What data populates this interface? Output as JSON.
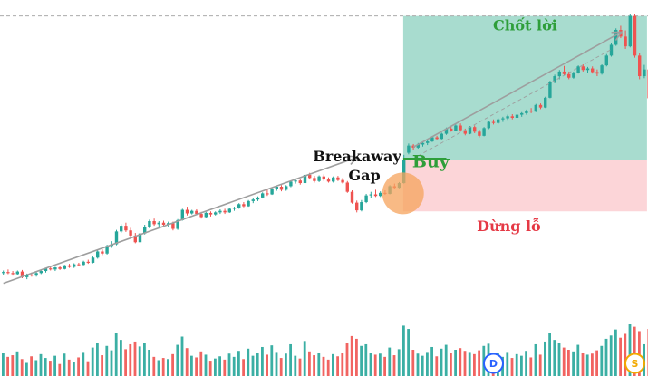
{
  "colors": {
    "up": "#26a69a",
    "down": "#ef5350",
    "arrow": "#9e9e9e",
    "take_profit_zone": "#a8dccf",
    "stop_loss_zone": "#fcd5d8",
    "gap_circle": "#f5a35c",
    "buy_line": "#2e9e3a",
    "buy_text": "#2e9e3a",
    "take_profit_text": "#2e9e3a",
    "stop_loss_text": "#e53945",
    "breakaway_text": "#111111",
    "marker_D": "#2962ff",
    "marker_S": "#f2a900"
  },
  "annotations": {
    "breakaway_line1": "Breakaway",
    "breakaway_line2": "Gap",
    "buy": "Buy",
    "take_profit": "Chốt lời",
    "stop_loss": "Dừng lỗ"
  },
  "markers": [
    {
      "label": "D",
      "icon": "dividend-marker-icon",
      "index": 104
    },
    {
      "label": "S",
      "icon": "split-marker-icon",
      "index": 134
    }
  ],
  "chart_data": {
    "type": "candlestick",
    "title": "",
    "xlabel": "",
    "ylabel": "",
    "grid": false,
    "candles": [
      [
        44.0,
        44.5,
        43.6,
        44.2,
        42
      ],
      [
        44.2,
        44.7,
        43.8,
        44.0,
        35
      ],
      [
        44.0,
        44.4,
        43.5,
        43.8,
        38
      ],
      [
        43.8,
        44.5,
        43.6,
        44.3,
        45
      ],
      [
        44.3,
        44.6,
        43.0,
        43.2,
        31
      ],
      [
        43.2,
        43.9,
        42.8,
        43.7,
        24
      ],
      [
        43.7,
        44.1,
        43.3,
        43.5,
        36
      ],
      [
        43.5,
        44.2,
        43.3,
        44.0,
        29
      ],
      [
        44.0,
        44.6,
        43.8,
        44.4,
        40
      ],
      [
        44.4,
        45.0,
        44.1,
        44.9,
        33
      ],
      [
        44.9,
        45.3,
        44.5,
        44.7,
        28
      ],
      [
        44.7,
        45.2,
        44.4,
        45.1,
        37
      ],
      [
        45.1,
        45.4,
        44.6,
        44.8,
        22
      ],
      [
        44.8,
        45.6,
        44.7,
        45.5,
        41
      ],
      [
        45.5,
        45.8,
        45.0,
        45.2,
        30
      ],
      [
        45.2,
        45.9,
        45.0,
        45.7,
        26
      ],
      [
        45.7,
        46.0,
        45.3,
        45.6,
        34
      ],
      [
        45.6,
        46.4,
        45.5,
        46.2,
        44
      ],
      [
        46.2,
        46.6,
        45.8,
        46.0,
        27
      ],
      [
        46.0,
        47.2,
        45.9,
        47.0,
        52
      ],
      [
        47.0,
        48.4,
        46.8,
        48.2,
        61
      ],
      [
        48.2,
        48.6,
        47.5,
        47.8,
        38
      ],
      [
        47.8,
        49.5,
        47.6,
        49.3,
        55
      ],
      [
        49.3,
        50.2,
        48.9,
        49.6,
        47
      ],
      [
        49.6,
        52.4,
        49.4,
        52.1,
        78
      ],
      [
        52.1,
        53.5,
        51.8,
        53.2,
        66
      ],
      [
        53.2,
        53.8,
        52.0,
        52.3,
        49
      ],
      [
        52.3,
        52.8,
        50.9,
        51.3,
        58
      ],
      [
        51.3,
        51.8,
        49.8,
        50.0,
        63
      ],
      [
        50.0,
        51.9,
        49.6,
        51.7,
        54
      ],
      [
        51.7,
        53.4,
        51.5,
        53.0,
        60
      ],
      [
        53.0,
        54.4,
        52.7,
        54.1,
        48
      ],
      [
        54.1,
        54.6,
        53.2,
        53.5,
        35
      ],
      [
        53.5,
        54.1,
        53.0,
        53.8,
        29
      ],
      [
        53.8,
        54.2,
        53.1,
        53.4,
        33
      ],
      [
        53.4,
        54.0,
        52.9,
        53.7,
        31
      ],
      [
        53.7,
        54.0,
        52.3,
        52.6,
        40
      ],
      [
        52.6,
        54.5,
        52.4,
        54.3,
        57
      ],
      [
        54.3,
        56.5,
        54.2,
        56.3,
        72
      ],
      [
        56.3,
        56.9,
        55.2,
        55.6,
        51
      ],
      [
        55.6,
        56.3,
        55.4,
        56.1,
        37
      ],
      [
        56.1,
        56.4,
        55.3,
        55.5,
        34
      ],
      [
        55.5,
        55.9,
        54.6,
        54.9,
        45
      ],
      [
        54.9,
        55.9,
        54.7,
        55.7,
        39
      ],
      [
        55.7,
        56.0,
        55.0,
        55.4,
        28
      ],
      [
        55.4,
        56.0,
        55.2,
        55.8,
        32
      ],
      [
        55.8,
        56.4,
        55.5,
        56.1,
        36
      ],
      [
        56.1,
        56.5,
        55.5,
        55.8,
        30
      ],
      [
        55.8,
        56.7,
        55.7,
        56.5,
        41
      ],
      [
        56.5,
        56.9,
        56.1,
        56.7,
        35
      ],
      [
        56.7,
        57.6,
        56.5,
        57.4,
        46
      ],
      [
        57.4,
        57.8,
        56.8,
        57.0,
        31
      ],
      [
        57.0,
        58.2,
        56.9,
        58.0,
        50
      ],
      [
        58.0,
        58.6,
        57.6,
        58.3,
        37
      ],
      [
        58.3,
        58.9,
        58.0,
        58.7,
        42
      ],
      [
        58.7,
        59.7,
        58.5,
        59.5,
        53
      ],
      [
        59.5,
        60.2,
        59.0,
        59.3,
        39
      ],
      [
        59.3,
        60.6,
        59.2,
        60.4,
        56
      ],
      [
        60.4,
        61.0,
        60.0,
        60.8,
        44
      ],
      [
        60.8,
        61.1,
        59.9,
        60.2,
        33
      ],
      [
        60.2,
        61.1,
        60.0,
        60.9,
        41
      ],
      [
        60.9,
        62.0,
        60.7,
        61.8,
        58
      ],
      [
        61.8,
        62.3,
        61.4,
        62.0,
        37
      ],
      [
        62.0,
        62.4,
        61.2,
        61.5,
        32
      ],
      [
        61.5,
        63.3,
        61.4,
        63.1,
        64
      ],
      [
        63.1,
        63.5,
        62.2,
        62.5,
        45
      ],
      [
        62.5,
        62.9,
        61.6,
        61.9,
        38
      ],
      [
        61.9,
        63.0,
        61.7,
        62.8,
        43
      ],
      [
        62.8,
        63.2,
        61.9,
        62.2,
        35
      ],
      [
        62.2,
        62.6,
        61.6,
        61.8,
        30
      ],
      [
        61.8,
        62.8,
        61.6,
        62.6,
        40
      ],
      [
        62.6,
        62.9,
        61.9,
        62.1,
        36
      ],
      [
        62.1,
        62.5,
        61.4,
        61.6,
        42
      ],
      [
        61.6,
        61.9,
        59.6,
        59.8,
        61
      ],
      [
        59.8,
        60.1,
        57.5,
        57.7,
        73
      ],
      [
        57.7,
        58.1,
        55.8,
        56.2,
        68
      ],
      [
        56.2,
        58.2,
        56.0,
        57.8,
        55
      ],
      [
        57.8,
        59.4,
        57.6,
        59.1,
        58
      ],
      [
        59.1,
        59.8,
        58.6,
        59.3,
        43
      ],
      [
        59.3,
        60.2,
        58.8,
        59.0,
        39
      ],
      [
        59.0,
        59.9,
        58.8,
        59.6,
        41
      ],
      [
        59.6,
        60.1,
        59.2,
        59.4,
        35
      ],
      [
        59.4,
        61.1,
        59.3,
        60.9,
        52
      ],
      [
        60.9,
        61.4,
        60.3,
        60.6,
        38
      ],
      [
        60.6,
        61.7,
        60.5,
        61.5,
        49
      ],
      [
        61.5,
        67.0,
        61.4,
        66.0,
        92
      ],
      [
        67.4,
        69.2,
        67.1,
        68.8,
        86
      ],
      [
        68.8,
        69.1,
        68.0,
        68.4,
        48
      ],
      [
        68.4,
        69.3,
        68.2,
        69.0,
        41
      ],
      [
        69.0,
        69.5,
        68.6,
        69.3,
        37
      ],
      [
        69.3,
        69.9,
        68.9,
        69.6,
        44
      ],
      [
        69.6,
        70.6,
        69.5,
        70.4,
        53
      ],
      [
        70.4,
        70.7,
        69.9,
        70.1,
        36
      ],
      [
        70.1,
        71.3,
        70.0,
        71.1,
        50
      ],
      [
        71.1,
        72.3,
        70.9,
        72.1,
        57
      ],
      [
        72.1,
        72.5,
        71.5,
        71.7,
        42
      ],
      [
        71.7,
        72.9,
        71.6,
        72.7,
        48
      ],
      [
        72.7,
        73.1,
        71.5,
        71.8,
        51
      ],
      [
        71.8,
        72.1,
        70.8,
        71.1,
        46
      ],
      [
        71.1,
        72.6,
        71.0,
        72.4,
        44
      ],
      [
        72.4,
        72.7,
        71.2,
        71.5,
        40
      ],
      [
        71.5,
        71.9,
        70.4,
        70.7,
        47
      ],
      [
        70.7,
        72.4,
        70.6,
        72.2,
        55
      ],
      [
        72.2,
        73.6,
        72.0,
        73.4,
        59
      ],
      [
        73.4,
        73.9,
        72.9,
        73.2,
        38
      ],
      [
        73.2,
        74.1,
        73.0,
        73.9,
        42
      ],
      [
        73.9,
        74.4,
        73.4,
        74.1,
        35
      ],
      [
        74.1,
        74.8,
        73.8,
        74.5,
        44
      ],
      [
        74.5,
        74.9,
        73.9,
        74.2,
        33
      ],
      [
        74.2,
        75.0,
        74.0,
        74.8,
        40
      ],
      [
        74.8,
        75.3,
        74.4,
        75.1,
        37
      ],
      [
        75.1,
        75.8,
        74.8,
        75.6,
        46
      ],
      [
        75.6,
        76.1,
        75.1,
        75.4,
        34
      ],
      [
        75.4,
        76.9,
        75.3,
        76.7,
        58
      ],
      [
        76.7,
        77.0,
        75.9,
        76.2,
        39
      ],
      [
        76.2,
        78.3,
        76.1,
        78.1,
        63
      ],
      [
        78.1,
        81.4,
        78.0,
        81.2,
        79
      ],
      [
        81.2,
        82.6,
        80.9,
        82.3,
        66
      ],
      [
        82.3,
        83.5,
        81.7,
        83.2,
        61
      ],
      [
        83.2,
        84.3,
        82.4,
        82.7,
        52
      ],
      [
        82.7,
        83.2,
        81.7,
        82.0,
        48
      ],
      [
        82.0,
        83.2,
        81.8,
        83.0,
        45
      ],
      [
        83.0,
        84.4,
        82.8,
        84.2,
        57
      ],
      [
        84.2,
        84.6,
        83.2,
        83.5,
        43
      ],
      [
        83.5,
        84.1,
        82.9,
        83.8,
        39
      ],
      [
        83.8,
        84.2,
        82.8,
        83.1,
        41
      ],
      [
        83.1,
        83.6,
        82.3,
        82.8,
        47
      ],
      [
        82.8,
        84.6,
        82.6,
        84.4,
        55
      ],
      [
        84.4,
        86.6,
        84.2,
        86.3,
        68
      ],
      [
        86.3,
        88.7,
        86.1,
        88.4,
        74
      ],
      [
        88.4,
        91.6,
        88.2,
        91.3,
        85
      ],
      [
        91.3,
        92.1,
        89.7,
        90.0,
        70
      ],
      [
        90.0,
        91.2,
        87.6,
        88.1,
        77
      ],
      [
        88.1,
        94.3,
        87.9,
        94.0,
        96
      ],
      [
        94.0,
        94.4,
        85.9,
        86.3,
        90
      ],
      [
        86.3,
        86.8,
        81.7,
        82.3,
        82
      ],
      [
        82.3,
        84.5,
        81.9,
        83.6,
        58
      ],
      [
        83.6,
        84.1,
        77.4,
        78.0,
        86
      ],
      [
        78.0,
        80.4,
        73.0,
        79.9,
        72
      ],
      [
        79.9,
        81.6,
        79.5,
        81.2,
        55
      ]
    ],
    "breakaway_gap_index": 85,
    "buy_price": 66.0,
    "take_profit": {
      "from_index": 86,
      "to_index": 136,
      "top": 94.0,
      "bottom": 66.0
    },
    "stop_loss": {
      "from_index": 86,
      "to_index": 136,
      "top": 66.0,
      "bottom": 56.0
    },
    "trend_arrow_1": {
      "from": {
        "index": 0,
        "price": 42.0
      },
      "to": {
        "index": 75,
        "price": 66.5
      }
    },
    "trend_arrow_2": {
      "from": {
        "index": 87,
        "price": 68.5
      },
      "to": {
        "index": 131,
        "price": 90.8
      }
    },
    "resistance_price": 94.0
  }
}
